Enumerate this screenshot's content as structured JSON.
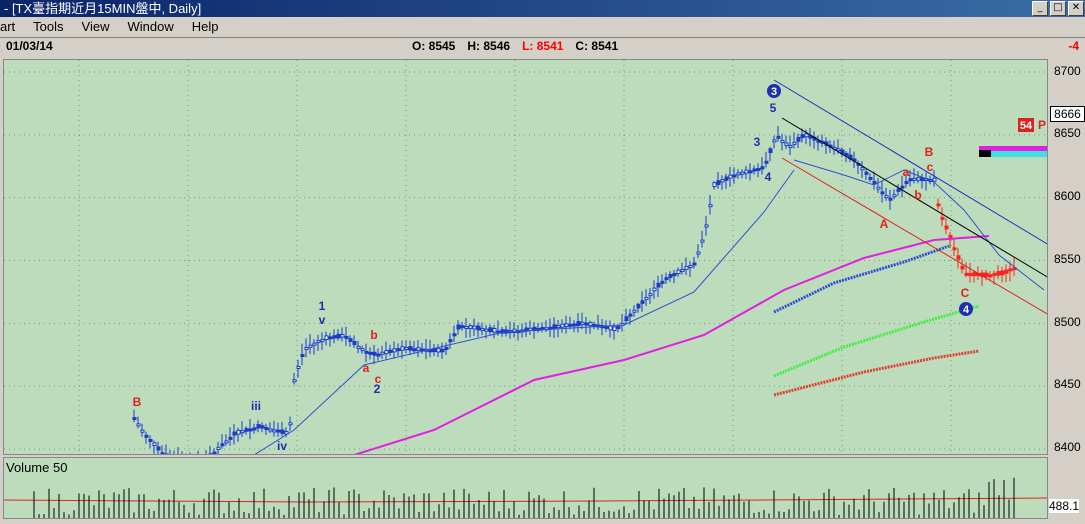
{
  "window": {
    "title": "- [TX臺指期近月15MIN盤中, Daily]",
    "minimize": "_",
    "restore": "□",
    "close": "✕"
  },
  "menu": [
    "art",
    "Tools",
    "View",
    "Window",
    "Help"
  ],
  "header": {
    "date": "01/03/14",
    "open_label": "O: 8545",
    "high_label": "H: 8546",
    "low_label": "L: 8541",
    "close_label": "C: 8541",
    "change": "-4"
  },
  "price_axis": {
    "labels": [
      "8700",
      "8650",
      "8600",
      "8550",
      "8500",
      "8450",
      "8400"
    ],
    "last_price": "8666",
    "marker_badge": "54",
    "marker_letter": "P"
  },
  "volume": {
    "label": "Volume 50",
    "last_value": "488.1"
  },
  "wave_labels": {
    "w3_circle": "3",
    "w4_circle": "4",
    "w5": "5",
    "w3": "3",
    "w4": "4",
    "w1": "1",
    "w2": "2",
    "v": "v",
    "iii": "iii",
    "iv": "iv",
    "B_left": "B",
    "a_mid": "a",
    "b_mid": "b",
    "c_mid": "c",
    "A": "A",
    "B_right": "B",
    "a_right": "a",
    "b_right": "b",
    "c_right": "c",
    "C": "C"
  },
  "colors": {
    "chart_bg": "#bcdcbc",
    "candles": "#1a3cc8",
    "recent_candles": "#ff2020",
    "ma_magenta": "#e020e0",
    "ma_blue": "#3050d0",
    "ma_green": "#40f040",
    "ma_red": "#e04030"
  }
}
